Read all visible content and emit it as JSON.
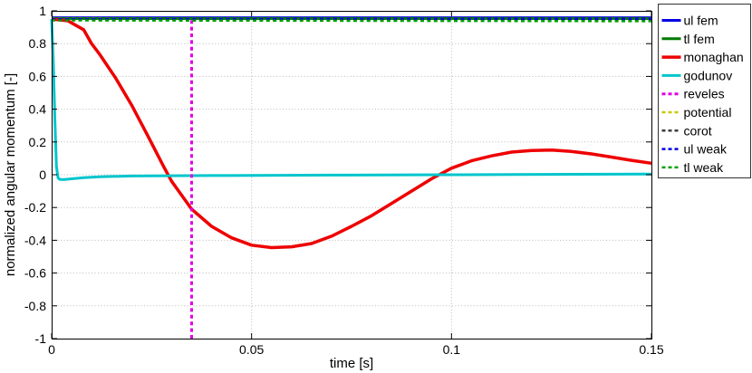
{
  "chart_data": {
    "type": "line",
    "title": "",
    "xlabel": "time [s]",
    "ylabel": "normalized angular momentum [-]",
    "xlim": [
      0,
      0.15
    ],
    "ylim": [
      -1,
      1
    ],
    "xticks": {
      "values": [
        0,
        0.05,
        0.1,
        0.15
      ],
      "labels": [
        "0",
        "0.05",
        "0.1",
        "0.15"
      ]
    },
    "yticks": {
      "values": [
        1,
        0.8,
        0.6,
        0.4,
        0.2,
        0,
        -0.2,
        -0.4,
        -0.6,
        -0.8,
        -1
      ],
      "labels": [
        "1",
        "0.8",
        "0.6",
        "0.4",
        "0.2",
        "0",
        "-0.2",
        "-0.4",
        "-0.6",
        "-0.8",
        "-1"
      ]
    },
    "grid": "dotted",
    "grid_color": "#b8b8b8",
    "axis_color": "#000000",
    "legend_position": "outside-right",
    "series": [
      {
        "name": "ul fem",
        "color": "#0000e6",
        "style": "solid",
        "width": 3,
        "points": [
          [
            0,
            0.958
          ],
          [
            0.15,
            0.958
          ]
        ]
      },
      {
        "name": "tl fem",
        "color": "#007a00",
        "style": "solid",
        "width": 3,
        "points": [
          [
            0,
            0.953
          ],
          [
            0.15,
            0.953
          ]
        ]
      },
      {
        "name": "monaghan",
        "color": "#ee0000",
        "style": "solid",
        "width": 3.5,
        "points": [
          [
            0,
            0.95
          ],
          [
            0.004,
            0.94
          ],
          [
            0.008,
            0.885
          ],
          [
            0.01,
            0.8
          ],
          [
            0.012,
            0.735
          ],
          [
            0.016,
            0.59
          ],
          [
            0.02,
            0.425
          ],
          [
            0.024,
            0.24
          ],
          [
            0.028,
            0.05
          ],
          [
            0.03,
            -0.04
          ],
          [
            0.035,
            -0.21
          ],
          [
            0.04,
            -0.315
          ],
          [
            0.045,
            -0.385
          ],
          [
            0.05,
            -0.43
          ],
          [
            0.055,
            -0.445
          ],
          [
            0.06,
            -0.44
          ],
          [
            0.065,
            -0.42
          ],
          [
            0.07,
            -0.375
          ],
          [
            0.075,
            -0.315
          ],
          [
            0.08,
            -0.25
          ],
          [
            0.085,
            -0.175
          ],
          [
            0.09,
            -0.1
          ],
          [
            0.095,
            -0.025
          ],
          [
            0.1,
            0.04
          ],
          [
            0.105,
            0.085
          ],
          [
            0.11,
            0.115
          ],
          [
            0.115,
            0.138
          ],
          [
            0.12,
            0.148
          ],
          [
            0.125,
            0.15
          ],
          [
            0.13,
            0.142
          ],
          [
            0.135,
            0.127
          ],
          [
            0.14,
            0.108
          ],
          [
            0.145,
            0.088
          ],
          [
            0.15,
            0.07
          ]
        ]
      },
      {
        "name": "godunov",
        "color": "#00c5cc",
        "style": "solid",
        "width": 3,
        "points": [
          [
            0,
            0.95
          ],
          [
            0.0004,
            0.7
          ],
          [
            0.0008,
            0.35
          ],
          [
            0.0012,
            0.05
          ],
          [
            0.0016,
            -0.02
          ],
          [
            0.002,
            -0.028
          ],
          [
            0.003,
            -0.03
          ],
          [
            0.005,
            -0.025
          ],
          [
            0.008,
            -0.018
          ],
          [
            0.012,
            -0.012
          ],
          [
            0.02,
            -0.008
          ],
          [
            0.04,
            -0.005
          ],
          [
            0.07,
            -0.002
          ],
          [
            0.1,
            0.0
          ],
          [
            0.13,
            0.003
          ],
          [
            0.15,
            0.004
          ]
        ]
      },
      {
        "name": "reveles",
        "color": "#e100e1",
        "style": "dashed",
        "width": 3,
        "points": [
          [
            0.035,
            -1
          ],
          [
            0.035,
            0.95
          ]
        ]
      },
      {
        "name": "potential",
        "color": "#c8c800",
        "style": "dashed",
        "width": 2.5,
        "points": [
          [
            0,
            0.951
          ],
          [
            0.15,
            0.95
          ]
        ]
      },
      {
        "name": "corot",
        "color": "#3c3c3c",
        "style": "dashed",
        "width": 2.5,
        "points": [
          [
            0,
            0.949
          ],
          [
            0.15,
            0.948
          ]
        ]
      },
      {
        "name": "ul weak",
        "color": "#0000e6",
        "style": "dashed",
        "width": 2.5,
        "points": [
          [
            0,
            0.95
          ],
          [
            0.15,
            0.952
          ]
        ]
      },
      {
        "name": "tl weak",
        "color": "#00a000",
        "style": "dashed",
        "width": 2.5,
        "points": [
          [
            0,
            0.942
          ],
          [
            0.15,
            0.937
          ]
        ]
      }
    ],
    "legend": {
      "entries": [
        "ul fem",
        "tl fem",
        "monaghan",
        "godunov",
        "reveles",
        "potential",
        "corot",
        "ul weak",
        "tl weak"
      ],
      "border_color": "#333333",
      "background": "#ffffff"
    },
    "annotations": [
      {
        "type": "vline",
        "series": "reveles",
        "x": 0.035
      }
    ]
  }
}
